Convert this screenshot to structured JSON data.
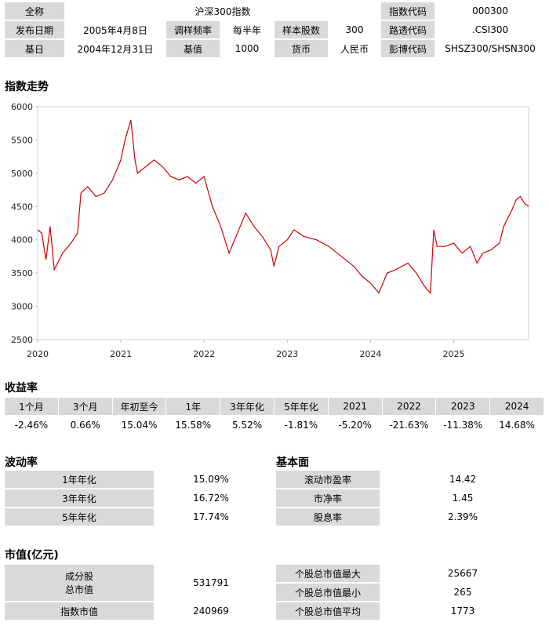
{
  "info": {
    "rows": [
      [
        "全称",
        "沪深300指数",
        "指数代码",
        "000300"
      ],
      [
        "发布日期",
        "2005年4月8日",
        "调样频率",
        "每半年",
        "样本股数",
        "300",
        "路透代码",
        ".CSI300"
      ],
      [
        "基日",
        "2004年12月31日",
        "基值",
        "1000",
        "货币",
        "人民币",
        "彭博代码",
        "SHSZ300/SHSN300"
      ]
    ]
  },
  "chart_title": "指数走势",
  "chart_data": {
    "type": "line",
    "color": "#d00000",
    "x": [
      2020.0,
      2020.05,
      2020.1,
      2020.15,
      2020.2,
      2020.3,
      2020.4,
      2020.48,
      2020.52,
      2020.6,
      2020.7,
      2020.8,
      2020.9,
      2021.0,
      2021.05,
      2021.12,
      2021.17,
      2021.2,
      2021.3,
      2021.4,
      2021.5,
      2021.6,
      2021.7,
      2021.8,
      2021.9,
      2022.0,
      2022.1,
      2022.2,
      2022.3,
      2022.4,
      2022.5,
      2022.6,
      2022.7,
      2022.8,
      2022.84,
      2022.9,
      2023.0,
      2023.08,
      2023.2,
      2023.35,
      2023.5,
      2023.65,
      2023.8,
      2023.9,
      2024.0,
      2024.1,
      2024.2,
      2024.3,
      2024.45,
      2024.55,
      2024.65,
      2024.72,
      2024.76,
      2024.8,
      2024.9,
      2025.0,
      2025.1,
      2025.2,
      2025.28,
      2025.35,
      2025.45,
      2025.55,
      2025.6,
      2025.7,
      2025.75,
      2025.8,
      2025.85,
      2025.9
    ],
    "values": [
      4150,
      4100,
      3700,
      4200,
      3550,
      3800,
      3950,
      4100,
      4700,
      4800,
      4650,
      4700,
      4900,
      5200,
      5500,
      5800,
      5200,
      5000,
      5100,
      5200,
      5100,
      4950,
      4900,
      4950,
      4850,
      4950,
      4500,
      4200,
      3800,
      4100,
      4400,
      4200,
      4050,
      3850,
      3600,
      3900,
      4000,
      4150,
      4050,
      4000,
      3900,
      3750,
      3600,
      3450,
      3350,
      3200,
      3500,
      3550,
      3650,
      3500,
      3300,
      3200,
      4150,
      3900,
      3900,
      3950,
      3800,
      3900,
      3650,
      3800,
      3850,
      3950,
      4200,
      4450,
      4600,
      4650,
      4550,
      4500
    ],
    "xlim": [
      2020,
      2025.9
    ],
    "ylim": [
      2500,
      6000
    ],
    "xticks": [
      2020,
      2021,
      2022,
      2023,
      2024,
      2025
    ],
    "yticks": [
      2500,
      3000,
      3500,
      4000,
      4500,
      5000,
      5500,
      6000
    ]
  },
  "returns": {
    "title": "收益率",
    "headers": [
      "1个月",
      "3个月",
      "年初至今",
      "1年",
      "3年年化",
      "5年年化",
      "2021",
      "2022",
      "2023",
      "2024"
    ],
    "values": [
      "-2.46%",
      "0.66%",
      "15.04%",
      "15.58%",
      "5.52%",
      "-1.81%",
      "-5.20%",
      "-21.63%",
      "-11.38%",
      "14.68%"
    ]
  },
  "volatility": {
    "title": "波动率",
    "rows": [
      [
        "1年年化",
        "15.09%"
      ],
      [
        "3年年化",
        "16.72%"
      ],
      [
        "5年年化",
        "17.74%"
      ]
    ]
  },
  "fundamentals": {
    "title": "基本面",
    "rows": [
      [
        "滚动市盈率",
        "14.42"
      ],
      [
        "市净率",
        "1.45"
      ],
      [
        "股息率",
        "2.39%"
      ]
    ]
  },
  "market_cap": {
    "title": "市值(亿元)",
    "left": [
      {
        "label": [
          "成分股",
          "总市值"
        ],
        "value": "531791"
      },
      {
        "label": [
          "指数市值"
        ],
        "value": "240969"
      }
    ],
    "right": [
      [
        "个股总市值最大",
        "25667"
      ],
      [
        "个股总市值最小",
        "265"
      ],
      [
        "个股总市值平均",
        "1773"
      ]
    ]
  }
}
